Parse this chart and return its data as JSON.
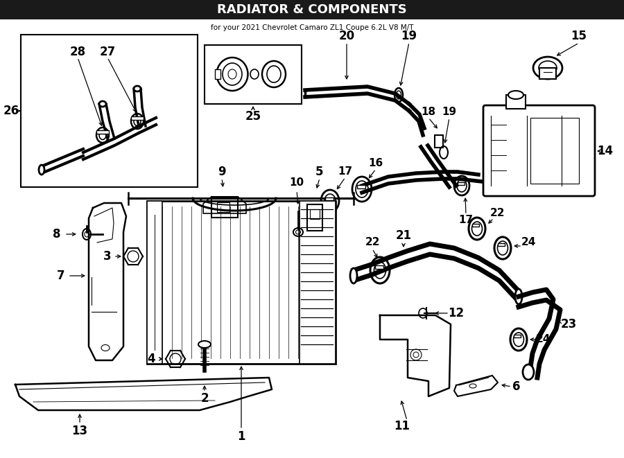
{
  "bg_color": "#ffffff",
  "line_color": "#000000",
  "fig_width": 9.0,
  "fig_height": 6.61,
  "title": "RADIATOR & COMPONENTS",
  "subtitle": "for your 2021 Chevrolet Camaro ZL1 Coupe 6.2L V8 M/T",
  "title_bar_color": "#1a1a1a",
  "title_text_color": "#ffffff",
  "subtitle_text_color": "#000000"
}
